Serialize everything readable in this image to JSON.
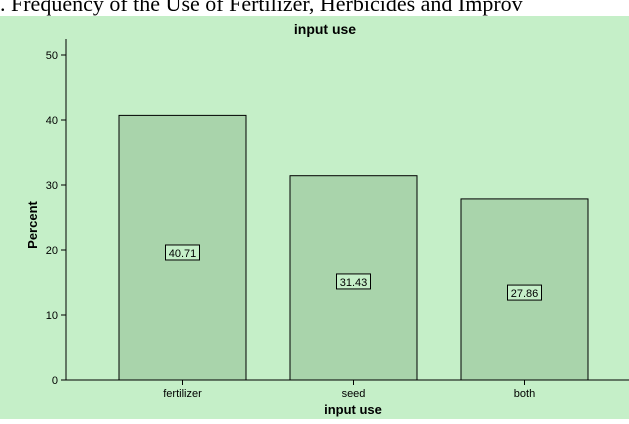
{
  "caption": ". Frequency of the Use of Fertilizer, Herbicides and Improv",
  "colors": {
    "background": "#c5efc8",
    "bar_fill": "#a9d4ab",
    "bar_stroke": "#000000",
    "label_box": "#c5efc8"
  },
  "chart_data": {
    "type": "bar",
    "title": "input use",
    "xlabel": "input use",
    "ylabel": "Percent",
    "categories": [
      "fertilizer",
      "seed",
      "both"
    ],
    "values": [
      40.71,
      31.43,
      27.86
    ],
    "data_labels": [
      "40.71",
      "31.43",
      "27.86"
    ],
    "ylim": [
      0,
      50
    ],
    "yticks": [
      "0",
      "10",
      "20",
      "30",
      "40",
      "50"
    ],
    "grid": false,
    "legend": "none"
  }
}
